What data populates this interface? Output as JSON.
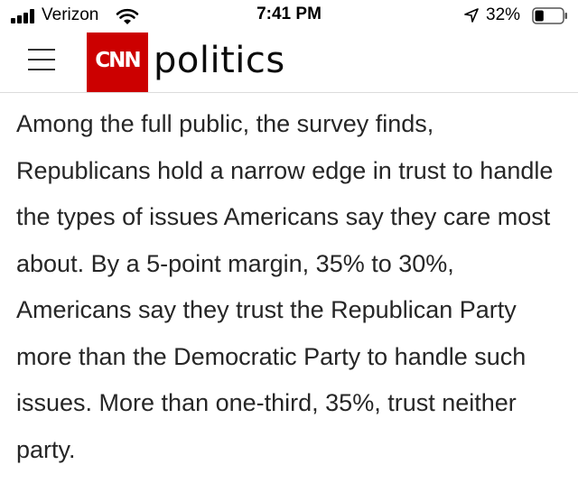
{
  "status_bar": {
    "carrier": "Verizon",
    "time": "7:41 PM",
    "battery_percent": "32%",
    "battery_level": 0.32,
    "icons": [
      "signal-icon",
      "wifi-icon",
      "location-arrow-icon",
      "battery-icon"
    ]
  },
  "header": {
    "menu_icon": "hamburger-menu-icon",
    "logo_text": "CNN",
    "logo_color": "#cc0000",
    "section_title": "politics"
  },
  "article": {
    "paragraph": "Among the full public, the survey finds, Republicans hold a narrow edge in trust to handle the types of issues Americans say they care most about. By a 5-point margin, 35% to 30%, Americans say they trust the Republican Party more than the Democratic Party to handle such issues. More than one-third, 35%, trust neither party."
  }
}
